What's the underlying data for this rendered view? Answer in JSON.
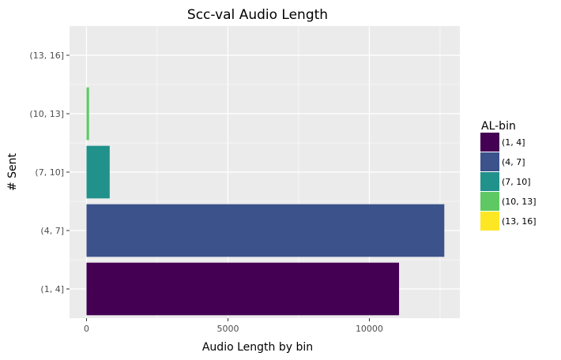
{
  "chart_data": {
    "type": "bar",
    "orientation": "horizontal",
    "title": "Scc-val Audio Length",
    "xlabel": "Audio Length by bin",
    "ylabel": "# Sent",
    "categories": [
      "(1, 4]",
      "(4, 7]",
      "(7, 10]",
      "(10, 13]",
      "(13, 16]"
    ],
    "values": [
      11050,
      12650,
      820,
      90,
      0
    ],
    "colors": [
      "#440154",
      "#3b528b",
      "#21918c",
      "#5ec962",
      "#fde725"
    ],
    "xlim": [
      -600,
      13200
    ],
    "xticks": [
      0,
      5000,
      10000
    ],
    "xtick_labels": [
      "0",
      "5000",
      "10000"
    ],
    "grid": true,
    "panel_background": "#ebebeb",
    "grid_color": "#ffffff",
    "legend": {
      "title": "AL-bin",
      "placement": "right",
      "entries": [
        "(1, 4]",
        "(4, 7]",
        "(7, 10]",
        "(10, 13]",
        "(13, 16]"
      ]
    }
  }
}
